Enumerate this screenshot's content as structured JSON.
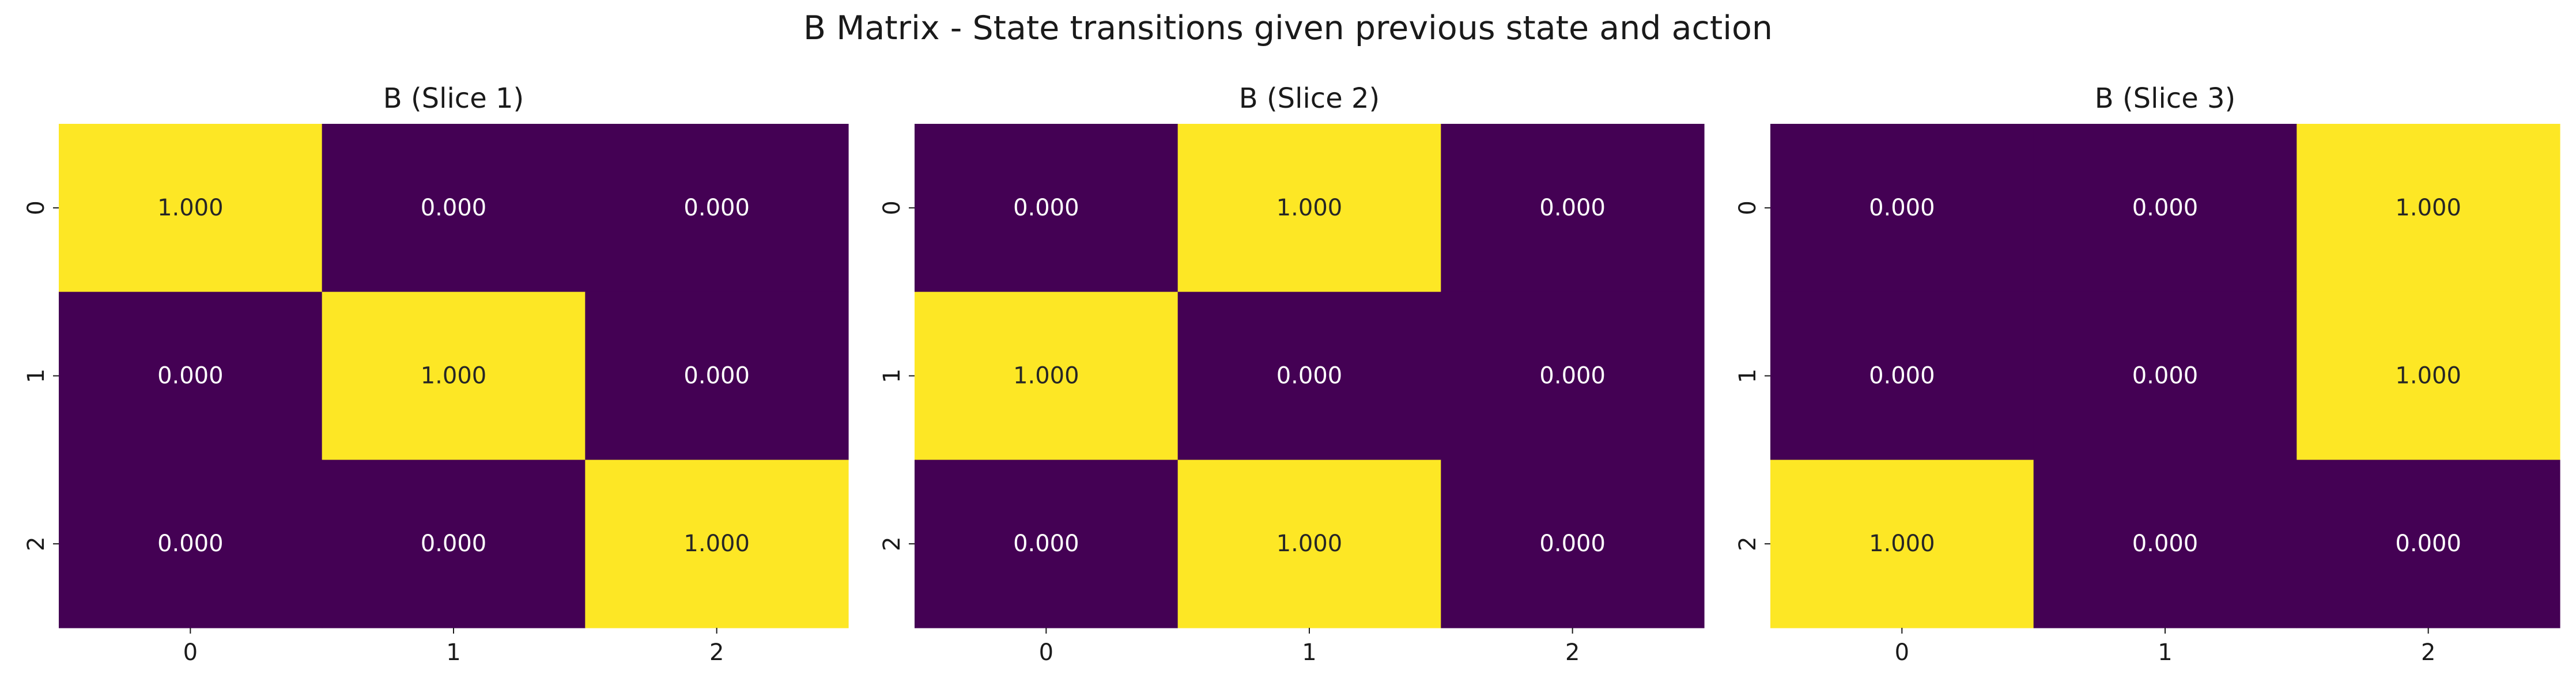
{
  "chart_data": {
    "type": "heatmap",
    "title": "B Matrix - State transitions given previous state and action",
    "colormap": {
      "low": "#440154",
      "high": "#fde725",
      "range": [
        0,
        1
      ]
    },
    "text_colors": {
      "on_low": "#ffffff",
      "on_high": "#262626"
    },
    "colorbar": false,
    "grid": false,
    "panels": [
      {
        "title": "B (Slice 1)",
        "x_ticks": [
          "0",
          "1",
          "2"
        ],
        "y_ticks": [
          "0",
          "1",
          "2"
        ],
        "values": [
          [
            1,
            0,
            0
          ],
          [
            0,
            1,
            0
          ],
          [
            0,
            0,
            1
          ]
        ],
        "labels": [
          [
            "1.000",
            "0.000",
            "0.000"
          ],
          [
            "0.000",
            "1.000",
            "0.000"
          ],
          [
            "0.000",
            "0.000",
            "1.000"
          ]
        ]
      },
      {
        "title": "B (Slice 2)",
        "x_ticks": [
          "0",
          "1",
          "2"
        ],
        "y_ticks": [
          "0",
          "1",
          "2"
        ],
        "values": [
          [
            0,
            1,
            0
          ],
          [
            1,
            0,
            0
          ],
          [
            0,
            1,
            0
          ]
        ],
        "labels": [
          [
            "0.000",
            "1.000",
            "0.000"
          ],
          [
            "1.000",
            "0.000",
            "0.000"
          ],
          [
            "0.000",
            "1.000",
            "0.000"
          ]
        ]
      },
      {
        "title": "B (Slice 3)",
        "x_ticks": [
          "0",
          "1",
          "2"
        ],
        "y_ticks": [
          "0",
          "1",
          "2"
        ],
        "values": [
          [
            0,
            0,
            1
          ],
          [
            0,
            0,
            1
          ],
          [
            1,
            0,
            0
          ]
        ],
        "labels": [
          [
            "0.000",
            "0.000",
            "1.000"
          ],
          [
            "0.000",
            "0.000",
            "1.000"
          ],
          [
            "1.000",
            "0.000",
            "0.000"
          ]
        ]
      }
    ]
  }
}
